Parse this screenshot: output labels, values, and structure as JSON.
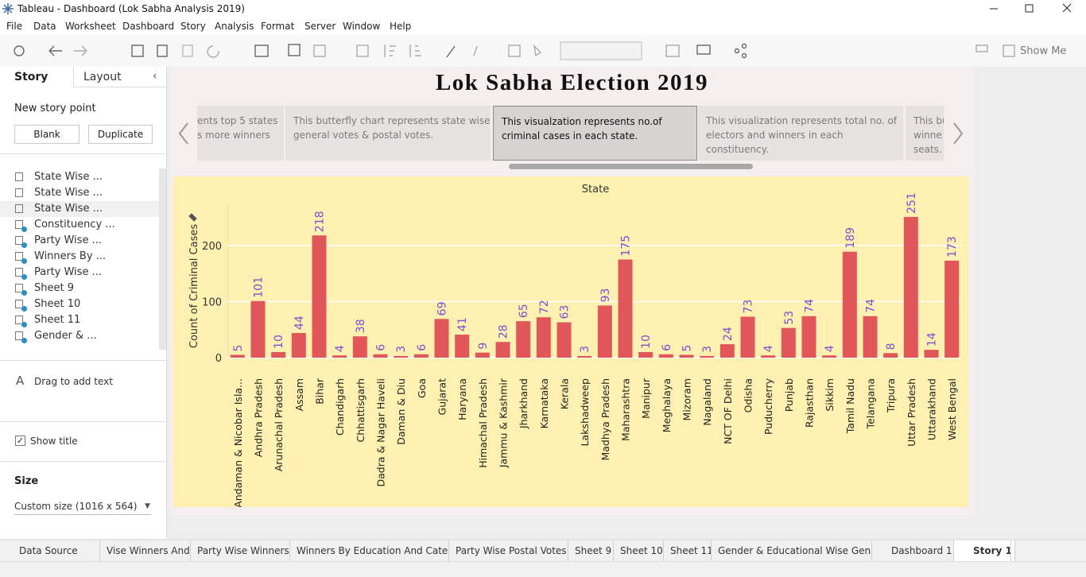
{
  "window": {
    "title": "Tableau - Dashboard (Lok Sabha Analysis 2019)"
  },
  "menu": [
    "File",
    "Data",
    "Worksheet",
    "Dashboard",
    "Story",
    "Analysis",
    "Format",
    "Server",
    "Window",
    "Help"
  ],
  "toolbar": {
    "show_me": "Show Me"
  },
  "sidebar": {
    "tabs": [
      "Story",
      "Layout"
    ],
    "new_story_point": "New story point",
    "buttons": [
      "Blank",
      "Duplicate"
    ],
    "sheets": [
      "State Wise ...",
      "State Wise ...",
      "State Wise ...",
      "Constituency ...",
      "Party Wise ...",
      "Winners By ...",
      "Party Wise ...",
      "Sheet 9",
      "Sheet 10",
      "Sheet 11",
      "Gender & ..."
    ],
    "drag_text": "Drag to add text",
    "show_title": "Show title",
    "size_label": "Size",
    "size_value": "Custom size (1016 x 564)"
  },
  "story": {
    "title": "Lok Sabha Election 2019",
    "points": [
      [
        "ents top 5 states",
        "s more winners"
      ],
      [
        "This butterfly chart represents state wise",
        "general votes & postal votes."
      ],
      [
        "This visualzation represents no.of",
        "criminal cases in each state."
      ],
      [
        "This visualization represents total no. of",
        "electors and winners in each",
        "constituency."
      ],
      [
        "This bu",
        "winne",
        "seats."
      ]
    ]
  },
  "chart_data": {
    "type": "bar",
    "x_title": "State",
    "y_title": "Count of Criminal Cases",
    "color": "#e15759",
    "label_color": "#7b4fd0",
    "categories": [
      "Andaman & Nicobar Isla...",
      "Andhra Pradesh",
      "Arunachal Pradesh",
      "Assam",
      "Bihar",
      "Chandigarh",
      "Chhattisgarh",
      "Dadra & Nagar Haveli",
      "Daman & Diu",
      "Goa",
      "Gujarat",
      "Haryana",
      "Himachal Pradesh",
      "Jammu & Kashmir",
      "Jharkhand",
      "Karnataka",
      "Kerala",
      "Lakshadweep",
      "Madhya Pradesh",
      "Maharashtra",
      "Manipur",
      "Meghalaya",
      "Mizoram",
      "Nagaland",
      "NCT OF Delhi",
      "Odisha",
      "Puducherry",
      "Punjab",
      "Rajasthan",
      "Sikkim",
      "Tamil Nadu",
      "Telangana",
      "Tripura",
      "Uttar Pradesh",
      "Uttarakhand",
      "West Bengal"
    ],
    "values": [
      5,
      101,
      10,
      44,
      218,
      4,
      38,
      6,
      3,
      6,
      69,
      41,
      9,
      28,
      65,
      72,
      63,
      3,
      93,
      175,
      10,
      6,
      5,
      3,
      24,
      73,
      4,
      53,
      74,
      4,
      189,
      74,
      8,
      251,
      14,
      173
    ],
    "ylim": [
      0,
      275
    ],
    "yticks": [
      0,
      100,
      200
    ],
    "grid": true
  },
  "tabs": [
    "Data Source",
    "Vise Winners And ...",
    "Party Wise Winners",
    "Winners By Education And Cate...",
    "Party Wise Postal Votes",
    "Sheet 9",
    "Sheet 10",
    "Sheet 11",
    "Gender & Educational Wise Gen...",
    "Dashboard 1",
    "Story 1"
  ]
}
